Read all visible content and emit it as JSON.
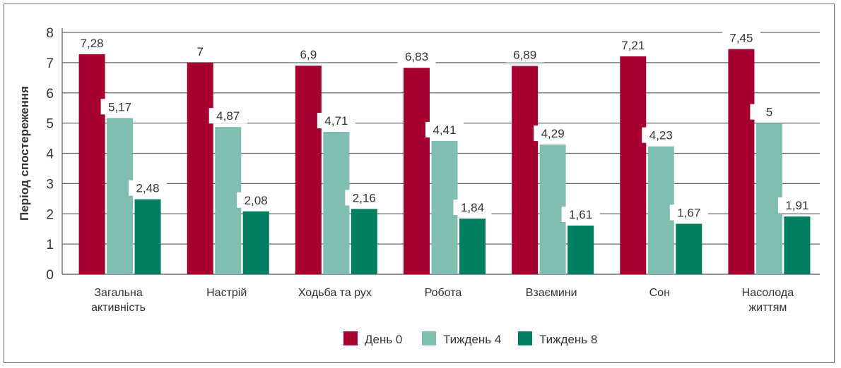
{
  "chart_data": {
    "type": "bar",
    "title": "",
    "xlabel": "",
    "ylabel": "Період спостереження",
    "ylim": [
      0,
      8
    ],
    "yticks": [
      "0",
      "1",
      "2",
      "3",
      "4",
      "5",
      "6",
      "7",
      "8"
    ],
    "grid": true,
    "legend_position": "bottom-center",
    "categories": [
      [
        "Загальна",
        "активність"
      ],
      [
        "Настрій"
      ],
      [
        "Ходьба та рух"
      ],
      [
        "Робота"
      ],
      [
        "Взаємини"
      ],
      [
        "Сон"
      ],
      [
        "Насолода",
        "життям"
      ]
    ],
    "series": [
      {
        "name": "День 0",
        "color": "#a50030",
        "values": [
          7.28,
          7,
          6.9,
          6.83,
          6.89,
          7.21,
          7.45
        ],
        "labels": [
          "7,28",
          "7",
          "6,9",
          "6,83",
          "6,89",
          "7,21",
          "7,45"
        ]
      },
      {
        "name": "Тиждень 4",
        "color": "#7fbeb0",
        "values": [
          5.17,
          4.87,
          4.71,
          4.41,
          4.29,
          4.23,
          5
        ],
        "labels": [
          "5,17",
          "4,87",
          "4,71",
          "4,41",
          "4,29",
          "4,23",
          "5"
        ]
      },
      {
        "name": "Тиждень 8",
        "color": "#007e62",
        "values": [
          2.48,
          2.08,
          2.16,
          1.84,
          1.61,
          1.67,
          1.91
        ],
        "labels": [
          "2,48",
          "2,08",
          "2,16",
          "1,84",
          "1,61",
          "1,67",
          "1,91"
        ]
      }
    ]
  }
}
